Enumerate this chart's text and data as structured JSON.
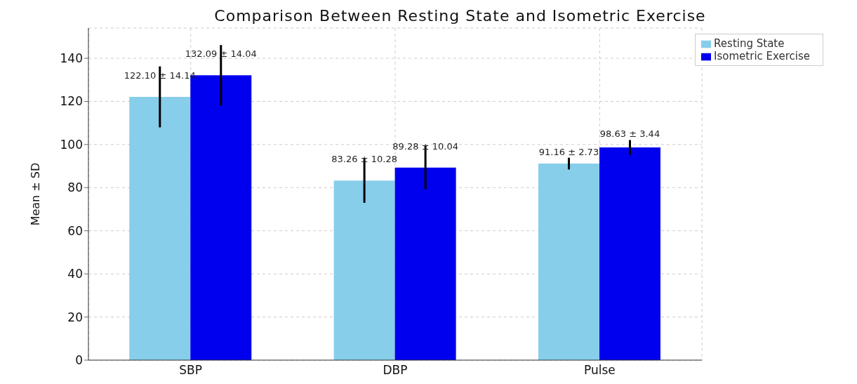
{
  "chart_data": {
    "type": "bar",
    "title": "Comparison Between Resting State and Isometric Exercise",
    "ylabel": "Mean ± SD",
    "categories": [
      "SBP",
      "DBP",
      "Pulse"
    ],
    "series": [
      {
        "name": "Resting State",
        "color": "#87ceeb",
        "values": [
          122.1,
          83.26,
          91.16
        ],
        "errors": [
          14.14,
          10.28,
          2.73
        ],
        "value_labels": [
          "122.10 ± 14.14",
          "83.26 ± 10.28",
          "91.16 ± 2.73"
        ]
      },
      {
        "name": "Isometric Exercise",
        "color": "#0000ee",
        "values": [
          132.09,
          89.28,
          98.63
        ],
        "errors": [
          14.04,
          10.04,
          3.44
        ],
        "value_labels": [
          "132.09 ± 14.04",
          "89.28 ± 10.04",
          "98.63 ± 3.44"
        ]
      }
    ],
    "ylim": [
      0,
      154
    ],
    "yticks": [
      0,
      20,
      40,
      60,
      80,
      100,
      120,
      140
    ],
    "grid": true,
    "legend": "top right"
  }
}
